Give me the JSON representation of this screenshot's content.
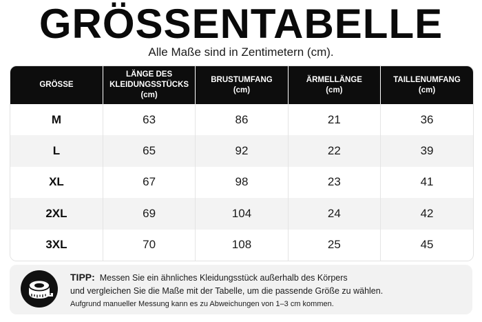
{
  "title": "GRÖSSENTABELLE",
  "subtitle": "Alle Maße sind in Zentimetern (cm).",
  "table": {
    "headers": [
      {
        "label": "GRÖSSE",
        "unit": ""
      },
      {
        "label": "LÄNGE DES KLEIDUNGSSTÜCKS",
        "unit": "(cm)"
      },
      {
        "label": "BRUSTUMFANG",
        "unit": "(cm)"
      },
      {
        "label": "ÄRMELLÄNGE",
        "unit": "(cm)"
      },
      {
        "label": "TAILLENUMFANG",
        "unit": "(cm)"
      }
    ],
    "rows": [
      {
        "size": "M",
        "length": "63",
        "chest": "86",
        "sleeve": "21",
        "waist": "36"
      },
      {
        "size": "L",
        "length": "65",
        "chest": "92",
        "sleeve": "22",
        "waist": "39"
      },
      {
        "size": "XL",
        "length": "67",
        "chest": "98",
        "sleeve": "23",
        "waist": "41"
      },
      {
        "size": "2XL",
        "length": "69",
        "chest": "104",
        "sleeve": "24",
        "waist": "42"
      },
      {
        "size": "3XL",
        "length": "70",
        "chest": "108",
        "sleeve": "25",
        "waist": "45"
      }
    ]
  },
  "tip": {
    "icon": "measuring-tape-icon",
    "label": "TIPP:",
    "line1": "Messen Sie ein ähnliches Kleidungsstück außerhalb des Körpers",
    "line2": "und vergleichen Sie die Maße mit der Tabelle, um die passende Größe zu wählen.",
    "note": "Aufgrund manueller Messung kann es zu Abweichungen von 1–3 cm kommen."
  }
}
